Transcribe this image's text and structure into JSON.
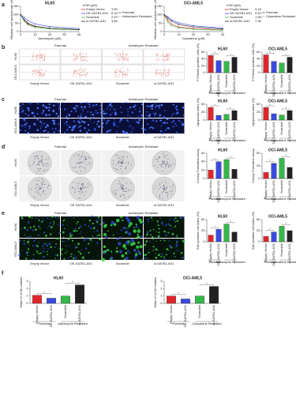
{
  "panel_labels": [
    "a",
    "b",
    "c",
    "d",
    "e",
    "f"
  ],
  "image_panels": [
    {
      "columns": [
        "Parental",
        "Adriamycin Resistant"
      ],
      "rows": [
        "HL60",
        "OCI-AML5"
      ],
      "bottom": [
        "Empty Vector",
        "OE-SATB1-AS1",
        "Scramble",
        "si-SATB1-AS1"
      ]
    },
    {
      "columns": [
        "Parental",
        "Adriamycin Resistant"
      ],
      "rows": [
        "HL60",
        "OCI-AML5"
      ],
      "bottom": [
        "Empty Vector",
        "OE-SATB1-AS1",
        "Scramble",
        "si-SATB1-AS1"
      ]
    },
    {
      "columns": [
        "Parental",
        "Adriamycin Resistant"
      ],
      "rows": [
        "HL60",
        "OCI-AML5"
      ],
      "bottom": [
        "Empty Vector",
        "OE-SATB1-AS1",
        "Scramble",
        "si-SATB1-AS1"
      ]
    },
    {
      "columns": [
        "Parental",
        "Adriamycin Resistant"
      ],
      "rows": [
        "HL60",
        "OCI-AML5"
      ],
      "bottom": [
        "Empty Vector",
        "OE-SATB1-AS1",
        "Scramble",
        "si-SATB1-AS1"
      ]
    }
  ],
  "chart_data": [
    {
      "type": "line",
      "title": "HL60",
      "xlabel": "Adriamycin (μM)",
      "ylabel": "Relative cell survival rate (%)",
      "legend_title": "IC50 (μM)",
      "style_legend": [
        "Parental",
        "Adriamycin Resistant"
      ],
      "x": [
        0,
        2.5,
        5,
        10,
        20,
        40
      ],
      "xlim": [
        0,
        40
      ],
      "xticks": [
        0,
        10,
        20,
        30,
        40
      ],
      "ylim": [
        0,
        150
      ],
      "yticks": [
        0,
        50,
        100,
        150
      ],
      "series": [
        {
          "name": "Empty Vector",
          "color": "#e0262b",
          "ic50": "3.50",
          "values": [
            100,
            70,
            45,
            30,
            20,
            12
          ]
        },
        {
          "name": "OE-SATB1-AS1",
          "color": "#3a4ae0",
          "ic50": "6.31",
          "values": [
            100,
            85,
            65,
            45,
            30,
            18
          ]
        },
        {
          "name": "Scramble",
          "color": "#35b84a",
          "ic50": "2.57",
          "values": [
            100,
            62,
            40,
            25,
            15,
            10
          ]
        },
        {
          "name": "si-SATB1-AS1",
          "color": "#222222",
          "ic50": "3.66",
          "values": [
            100,
            72,
            50,
            32,
            20,
            12
          ]
        }
      ]
    },
    {
      "type": "line",
      "title": "OCI-AML5",
      "xlabel": "Cytarabine (μM)",
      "ylabel": "Relative cell survival rate (%)",
      "legend_title": "IC50 (μM)",
      "style_legend": [
        "Parental",
        "Cytarabine Resistant"
      ],
      "x": [
        0,
        2.5,
        5,
        10,
        20,
        40
      ],
      "xlim": [
        0,
        40
      ],
      "xticks": [
        0,
        10,
        20,
        30,
        40
      ],
      "ylim": [
        0,
        150
      ],
      "yticks": [
        0,
        50,
        100,
        150
      ],
      "series": [
        {
          "name": "Empty Vector",
          "color": "#e0262b",
          "ic50": "3.18",
          "values": [
            100,
            68,
            44,
            28,
            18,
            10
          ]
        },
        {
          "name": "OE-SATB1-AS1",
          "color": "#3a4ae0",
          "ic50": "9.61",
          "values": [
            100,
            88,
            70,
            52,
            35,
            20
          ]
        },
        {
          "name": "Scramble",
          "color": "#35b84a",
          "ic50": "1.56",
          "values": [
            100,
            55,
            35,
            22,
            14,
            8
          ]
        },
        {
          "name": "si-SATB1-AS1",
          "color": "#222222",
          "ic50": "7.36",
          "values": [
            100,
            80,
            62,
            42,
            28,
            16
          ]
        }
      ]
    },
    {
      "type": "bar",
      "title": "HL60",
      "ylabel": "P-Protein positive cells (%)",
      "categories": [
        "Empty Vector",
        "OE-SATB1-AS1",
        "Scramble",
        "si-SATB1-AS1"
      ],
      "values": [
        50,
        35,
        33,
        45
      ],
      "colors": [
        "#e0262b",
        "#3a4ae0",
        "#35b84a",
        "#222222"
      ],
      "groups": [
        "Parental",
        "Adriamycin Resistant"
      ],
      "annotations": [
        "*",
        "*"
      ],
      "ylim": [
        0,
        60
      ],
      "yticks": [
        0,
        20,
        40,
        60
      ]
    },
    {
      "type": "bar",
      "title": "OCI-AML5",
      "ylabel": "P-Protein positive cells (%)",
      "categories": [
        "Empty Vector",
        "OE-SATB1-AS1",
        "Scramble",
        "si-SATB1-AS1"
      ],
      "values": [
        52,
        33,
        28,
        45
      ],
      "colors": [
        "#e0262b",
        "#3a4ae0",
        "#35b84a",
        "#222222"
      ],
      "groups": [
        "Parental",
        "Cytarabine Resistant"
      ],
      "annotations": [
        "*",
        "*"
      ],
      "ylim": [
        0,
        60
      ],
      "yticks": [
        0,
        20,
        40,
        60
      ]
    },
    {
      "type": "bar",
      "title": "HL60",
      "ylabel": "Apoptosis index (%)",
      "categories": [
        "Empty Vector",
        "OE-SATB1-AS1",
        "Scramble",
        "si-SATB1-AS1"
      ],
      "values": [
        40,
        15,
        18,
        30
      ],
      "colors": [
        "#e0262b",
        "#3a4ae0",
        "#35b84a",
        "#222222"
      ],
      "groups": [
        "Parental",
        "Adriamycin Resistant"
      ],
      "annotations": [
        "*",
        "*"
      ],
      "ylim": [
        0,
        50
      ],
      "yticks": [
        0,
        25,
        50
      ]
    },
    {
      "type": "bar",
      "title": "OCI-AML5",
      "ylabel": "Apoptosis index (%)",
      "categories": [
        "Empty Vector",
        "OE-SATB1-AS1",
        "Scramble",
        "si-SATB1-AS1"
      ],
      "values": [
        40,
        20,
        16,
        30
      ],
      "colors": [
        "#e0262b",
        "#3a4ae0",
        "#35b84a",
        "#222222"
      ],
      "groups": [
        "Parental",
        "Cytarabine Resistant"
      ],
      "annotations": [
        "*",
        "*"
      ],
      "ylim": [
        0,
        50
      ],
      "yticks": [
        0,
        25,
        50
      ]
    },
    {
      "type": "bar",
      "title": "HL60",
      "ylabel": "Colony Formation assay",
      "categories": [
        "Empty Vector",
        "OE-SATB1-AS1",
        "Scramble",
        "si-SATB1-AS1"
      ],
      "values": [
        20,
        40,
        45,
        22
      ],
      "colors": [
        "#e0262b",
        "#3a4ae0",
        "#35b84a",
        "#222222"
      ],
      "groups": [
        "Parental",
        "Adriamycin Resistant"
      ],
      "annotations": [
        "*",
        "*"
      ],
      "ylim": [
        0,
        60
      ],
      "yticks": [
        0,
        20,
        40,
        60
      ]
    },
    {
      "type": "bar",
      "title": "OCI-AML5",
      "ylabel": "Colony Formation assay",
      "categories": [
        "Empty Vector",
        "OE-SATB1-AS1",
        "Scramble",
        "si-SATB1-AS1"
      ],
      "values": [
        12,
        30,
        40,
        22
      ],
      "colors": [
        "#e0262b",
        "#3a4ae0",
        "#35b84a",
        "#222222"
      ],
      "groups": [
        "Parental",
        "Cytarabine Resistant"
      ],
      "annotations": [
        "*",
        "*"
      ],
      "ylim": [
        0,
        50
      ],
      "yticks": [
        0,
        25,
        50
      ]
    },
    {
      "type": "bar",
      "title": "HL60",
      "ylabel": "EdU positive cell index (%)",
      "categories": [
        "Empty Vector",
        "OE-SATB1-AS1",
        "Scramble",
        "si-SATB1-AS1"
      ],
      "values": [
        15,
        28,
        40,
        22
      ],
      "colors": [
        "#e0262b",
        "#3a4ae0",
        "#35b84a",
        "#222222"
      ],
      "groups": [
        "Parental",
        "Adriamycin Resistant"
      ],
      "annotations": [
        "*",
        "*"
      ],
      "ylim": [
        0,
        50
      ],
      "yticks": [
        0,
        25,
        50
      ]
    },
    {
      "type": "bar",
      "title": "OCI-AML5",
      "ylabel": "EdU positive cell index (%)",
      "categories": [
        "Empty Vector",
        "OE-SATB1-AS1",
        "Scramble",
        "si-SATB1-AS1"
      ],
      "values": [
        12,
        22,
        35,
        25
      ],
      "colors": [
        "#e0262b",
        "#3a4ae0",
        "#35b84a",
        "#222222"
      ],
      "groups": [
        "Parental",
        "Cytarabine Resistant"
      ],
      "annotations": [
        "*",
        "*"
      ],
      "ylim": [
        0,
        50
      ],
      "yticks": [
        0,
        25,
        50
      ]
    },
    {
      "type": "bar",
      "title": "HL60",
      "ylabel": "Ratio of LC3II relative",
      "categories": [
        "Empty Vector",
        "OE-SATB1-AS1",
        "Scramble",
        "si-SATB1-AS1"
      ],
      "values": [
        1.1,
        0.7,
        1.0,
        2.5
      ],
      "colors": [
        "#e0262b",
        "#3a4ae0",
        "#35b84a",
        "#222222"
      ],
      "groups": [
        "Parental",
        "Adriamycin Resistant"
      ],
      "annotations": [
        "*",
        "*"
      ],
      "ylim": [
        0,
        3
      ],
      "yticks": [
        0,
        1,
        2,
        3
      ]
    },
    {
      "type": "bar",
      "title": "OCI-AML5",
      "ylabel": "Ratio of LC3II relative",
      "categories": [
        "Empty Vector",
        "OE-SATB1-AS1",
        "Scramble",
        "si-SATB1-AS1"
      ],
      "values": [
        1.0,
        0.6,
        1.0,
        2.3
      ],
      "colors": [
        "#e0262b",
        "#3a4ae0",
        "#35b84a",
        "#222222"
      ],
      "groups": [
        "Parental",
        "Cytarabine Resistant"
      ],
      "annotations": [
        "*",
        "*"
      ],
      "ylim": [
        0,
        3
      ],
      "yticks": [
        0,
        1,
        2,
        3
      ]
    }
  ]
}
